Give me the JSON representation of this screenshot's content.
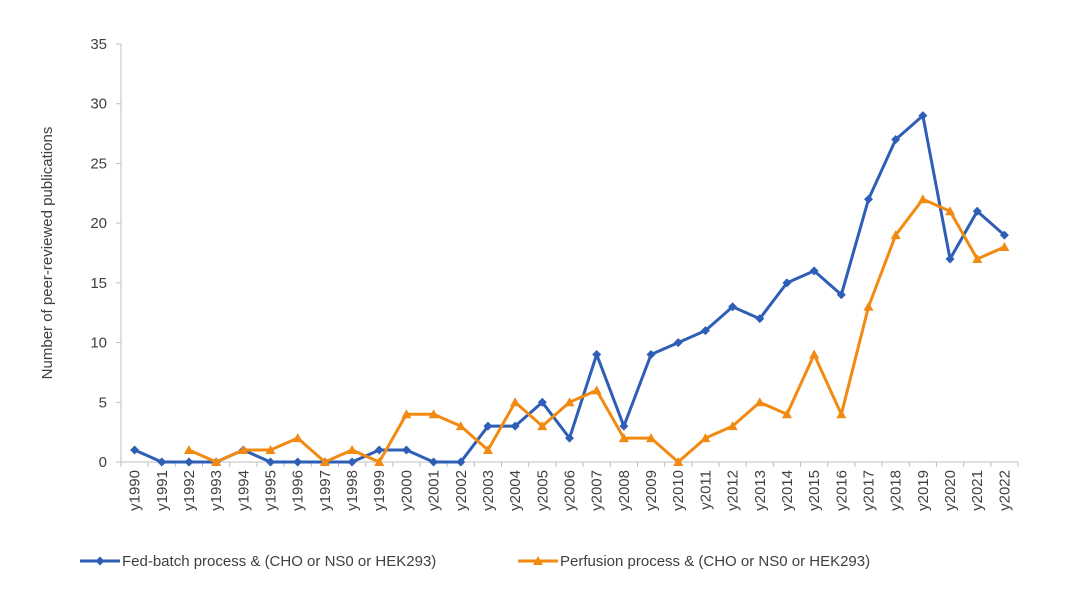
{
  "chart_data": {
    "type": "line",
    "title": "",
    "xlabel": "",
    "ylabel": "Number of peer-reviewed publications",
    "ylim": [
      0,
      35
    ],
    "yticks": [
      0,
      5,
      10,
      15,
      20,
      25,
      30,
      35
    ],
    "grid": false,
    "legend_position": "bottom",
    "categories": [
      "y1990",
      "y1991",
      "y1992",
      "y1993",
      "y1994",
      "y1995",
      "y1996",
      "y1997",
      "y1998",
      "y1999",
      "y2000",
      "y2001",
      "y2002",
      "y2003",
      "y2004",
      "y2005",
      "y2006",
      "y2007",
      "y2008",
      "y2009",
      "y2010",
      "y2011",
      "y2012",
      "y2013",
      "y2014",
      "y2015",
      "y2016",
      "y2017",
      "y2018",
      "y2019",
      "y2020",
      "y2021",
      "y2022"
    ],
    "series": [
      {
        "name": "Fed-batch process & (CHO or NS0 or HEK293)",
        "color": "#2E5EB5",
        "marker": "diamond",
        "values": [
          1,
          0,
          0,
          0,
          1,
          0,
          0,
          0,
          0,
          1,
          1,
          0,
          0,
          3,
          3,
          5,
          2,
          9,
          3,
          9,
          10,
          11,
          13,
          12,
          15,
          16,
          14,
          22,
          27,
          29,
          17,
          21,
          19
        ]
      },
      {
        "name": "Perfusion process & (CHO or NS0 or HEK293)",
        "color": "#F28A12",
        "marker": "triangle",
        "values": [
          null,
          null,
          1,
          0,
          1,
          1,
          2,
          0,
          1,
          0,
          4,
          4,
          3,
          1,
          5,
          3,
          5,
          6,
          2,
          2,
          0,
          2,
          3,
          5,
          4,
          9,
          4,
          13,
          19,
          22,
          21,
          17,
          18
        ]
      }
    ]
  }
}
